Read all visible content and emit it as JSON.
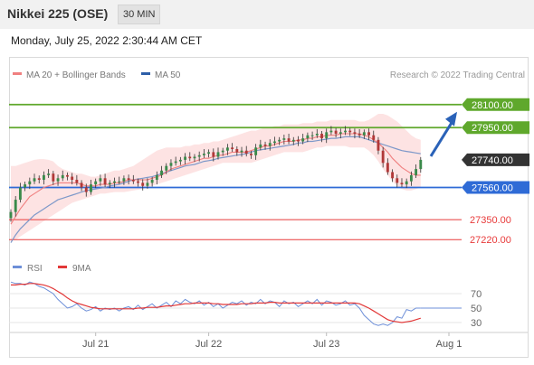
{
  "header": {
    "title": "Nikkei 225 (OSE)",
    "timeframe": "30 MIN"
  },
  "datetime": "Monday, July 25, 2022 2:30:44 AM CET",
  "legend": {
    "ma20": "MA 20 + Bollinger Bands",
    "ma50": "MA 50",
    "copyright": "Research © 2022 Trading Central"
  },
  "colors": {
    "ma20": "#f08080",
    "ma50": "#2d5ea8",
    "bands": "#fde0e0",
    "resistance": "#5fa82c",
    "support": "#2f6bd6",
    "levels_red": "#e83a3a",
    "rsi": "#6d8fd8",
    "rsi_ma": "#e23838",
    "candle_up": "#3a8a4a",
    "candle_down": "#b13838",
    "current": "#333333",
    "arrow": "#2a62b8"
  },
  "chart_data": [
    {
      "type": "candlestick",
      "title": "Nikkei 225 (OSE)",
      "timeframe": "30 MIN",
      "ylim": [
        27180,
        28240
      ],
      "xlim": [
        0,
        88
      ],
      "x_ticks": [
        {
          "x": 18,
          "label": "Jul 21"
        },
        {
          "x": 42,
          "label": "Jul 22"
        },
        {
          "x": 67,
          "label": "Jul 23"
        },
        {
          "x": 79,
          "label": "Aug 1"
        }
      ],
      "close": [
        27400,
        27480,
        27560,
        27580,
        27600,
        27620,
        27610,
        27640,
        27650,
        27600,
        27620,
        27640,
        27630,
        27610,
        27590,
        27560,
        27530,
        27580,
        27600,
        27620,
        27580,
        27590,
        27600,
        27600,
        27620,
        27610,
        27600,
        27590,
        27570,
        27590,
        27610,
        27640,
        27670,
        27700,
        27720,
        27730,
        27740,
        27760,
        27750,
        27760,
        27770,
        27780,
        27790,
        27760,
        27790,
        27800,
        27820,
        27810,
        27790,
        27800,
        27780,
        27770,
        27820,
        27840,
        27830,
        27850,
        27860,
        27870,
        27880,
        27860,
        27870,
        27860,
        27880,
        27900,
        27900,
        27910,
        27880,
        27920,
        27930,
        27910,
        27920,
        27930,
        27920,
        27910,
        27900,
        27920,
        27900,
        27870,
        27800,
        27720,
        27660,
        27620,
        27590,
        27580,
        27600,
        27640,
        27680,
        27740
      ],
      "ma20": [
        27320,
        27370,
        27420,
        27460,
        27500,
        27520,
        27540,
        27560,
        27570,
        27580,
        27590,
        27590,
        27590,
        27590,
        27590,
        27580,
        27570,
        27570,
        27570,
        27580,
        27580,
        27580,
        27590,
        27590,
        27600,
        27610,
        27610,
        27610,
        27610,
        27610,
        27620,
        27630,
        27640,
        27660,
        27680,
        27690,
        27700,
        27710,
        27720,
        27730,
        27740,
        27750,
        27750,
        27760,
        27770,
        27770,
        27780,
        27790,
        27790,
        27790,
        27790,
        27800,
        27810,
        27820,
        27830,
        27830,
        27840,
        27850,
        27860,
        27860,
        27860,
        27870,
        27870,
        27880,
        27880,
        27890,
        27890,
        27900,
        27900,
        27900,
        27910,
        27910,
        27910,
        27910,
        27910,
        27900,
        27890,
        27870,
        27850,
        27820,
        27790,
        27750,
        27720,
        27690,
        27670,
        27650,
        27640,
        27640
      ],
      "ma50": [
        27200,
        27250,
        27290,
        27320,
        27350,
        27380,
        27400,
        27420,
        27440,
        27460,
        27480,
        27490,
        27500,
        27510,
        27520,
        27530,
        27540,
        27545,
        27550,
        27555,
        27560,
        27570,
        27575,
        27580,
        27590,
        27600,
        27610,
        27615,
        27620,
        27625,
        27630,
        27640,
        27650,
        27660,
        27670,
        27680,
        27690,
        27700,
        27705,
        27710,
        27720,
        27730,
        27735,
        27740,
        27750,
        27755,
        27760,
        27765,
        27770,
        27775,
        27780,
        27790,
        27800,
        27805,
        27810,
        27815,
        27820,
        27825,
        27830,
        27835,
        27840,
        27850,
        27850,
        27860,
        27860,
        27865,
        27870,
        27875,
        27880,
        27880,
        27885,
        27890,
        27890,
        27890,
        27890,
        27880,
        27870,
        27860,
        27850,
        27840,
        27830,
        27820,
        27810,
        27800,
        27795,
        27790,
        27785,
        27780
      ],
      "bb_upper": [
        27700,
        27700,
        27710,
        27720,
        27730,
        27740,
        27745,
        27745,
        27740,
        27730,
        27700,
        27680,
        27670,
        27660,
        27650,
        27650,
        27640,
        27630,
        27630,
        27640,
        27650,
        27660,
        27670,
        27670,
        27680,
        27690,
        27700,
        27720,
        27740,
        27760,
        27780,
        27800,
        27810,
        27820,
        27820,
        27820,
        27820,
        27830,
        27830,
        27840,
        27840,
        27850,
        27850,
        27860,
        27860,
        27870,
        27880,
        27890,
        27900,
        27910,
        27920,
        27930,
        27930,
        27940,
        27950,
        27950,
        27960,
        27960,
        27970,
        27970,
        27970,
        27970,
        27980,
        27980,
        27980,
        27990,
        27990,
        27990,
        28000,
        28000,
        28000,
        28000,
        28000,
        28000,
        27990,
        27990,
        28000,
        28020,
        28040,
        28040,
        28030,
        28010,
        27990,
        27960,
        27930,
        27900,
        27880,
        27870
      ],
      "bb_lower": [
        27210,
        27220,
        27240,
        27260,
        27280,
        27300,
        27320,
        27340,
        27360,
        27380,
        27400,
        27420,
        27440,
        27460,
        27470,
        27480,
        27490,
        27500,
        27510,
        27520,
        27520,
        27525,
        27530,
        27530,
        27530,
        27535,
        27540,
        27545,
        27550,
        27560,
        27570,
        27580,
        27590,
        27600,
        27610,
        27620,
        27630,
        27640,
        27650,
        27660,
        27670,
        27680,
        27690,
        27700,
        27710,
        27720,
        27720,
        27720,
        27720,
        27720,
        27720,
        27720,
        27730,
        27740,
        27750,
        27760,
        27770,
        27780,
        27790,
        27790,
        27790,
        27790,
        27790,
        27800,
        27810,
        27820,
        27820,
        27830,
        27830,
        27830,
        27830,
        27830,
        27820,
        27820,
        27820,
        27820,
        27800,
        27770,
        27730,
        27680,
        27640,
        27600,
        27570,
        27550,
        27540,
        27540,
        27550,
        27560
      ],
      "levels": [
        {
          "label": "28100.00",
          "value": 28100,
          "kind": "resistance"
        },
        {
          "label": "27950.00",
          "value": 27950,
          "kind": "resistance"
        },
        {
          "label": "27740.00",
          "value": 27740,
          "kind": "current"
        },
        {
          "label": "27560.00",
          "value": 27560,
          "kind": "support"
        },
        {
          "label": "27350.00",
          "value": 27350,
          "kind": "support-red"
        },
        {
          "label": "27220.00",
          "value": 27220,
          "kind": "support-red"
        }
      ],
      "projection": {
        "from": [
          88,
          27740
        ],
        "to": [
          94,
          28100
        ]
      }
    },
    {
      "type": "line",
      "title": "RSI",
      "series": [
        {
          "name": "RSI",
          "values": [
            86,
            84,
            84,
            82,
            86,
            84,
            80,
            78,
            74,
            70,
            62,
            56,
            50,
            52,
            56,
            50,
            46,
            48,
            52,
            46,
            50,
            48,
            50,
            46,
            50,
            52,
            48,
            54,
            48,
            52,
            56,
            50,
            54,
            58,
            52,
            60,
            56,
            62,
            58,
            56,
            60,
            54,
            58,
            52,
            56,
            50,
            54,
            58,
            56,
            60,
            54,
            58,
            56,
            62,
            56,
            60,
            58,
            52,
            60,
            56,
            58,
            52,
            56,
            60,
            56,
            62,
            54,
            60,
            58,
            54,
            56,
            60,
            54,
            56,
            50,
            40,
            34,
            28,
            26,
            28,
            26,
            30,
            38,
            36,
            48,
            46,
            50,
            50
          ]
        },
        {
          "name": "9MA",
          "values": [
            82,
            82,
            83,
            83,
            84,
            84,
            83,
            82,
            80,
            77,
            73,
            69,
            64,
            60,
            57,
            55,
            53,
            51,
            50,
            49,
            49,
            49,
            49,
            49,
            49,
            49,
            49,
            50,
            50,
            51,
            51,
            51,
            52,
            53,
            53,
            54,
            55,
            56,
            56,
            57,
            57,
            57,
            57,
            56,
            56,
            55,
            55,
            55,
            55,
            56,
            56,
            56,
            57,
            57,
            57,
            58,
            58,
            57,
            57,
            57,
            57,
            57,
            57,
            57,
            57,
            57,
            57,
            57,
            57,
            57,
            57,
            57,
            57,
            57,
            56,
            53,
            50,
            46,
            42,
            38,
            34,
            32,
            31,
            30,
            31,
            32,
            34,
            36
          ]
        }
      ],
      "ylim": [
        20,
        95
      ],
      "y_ticks": [
        70,
        50,
        30
      ]
    }
  ]
}
